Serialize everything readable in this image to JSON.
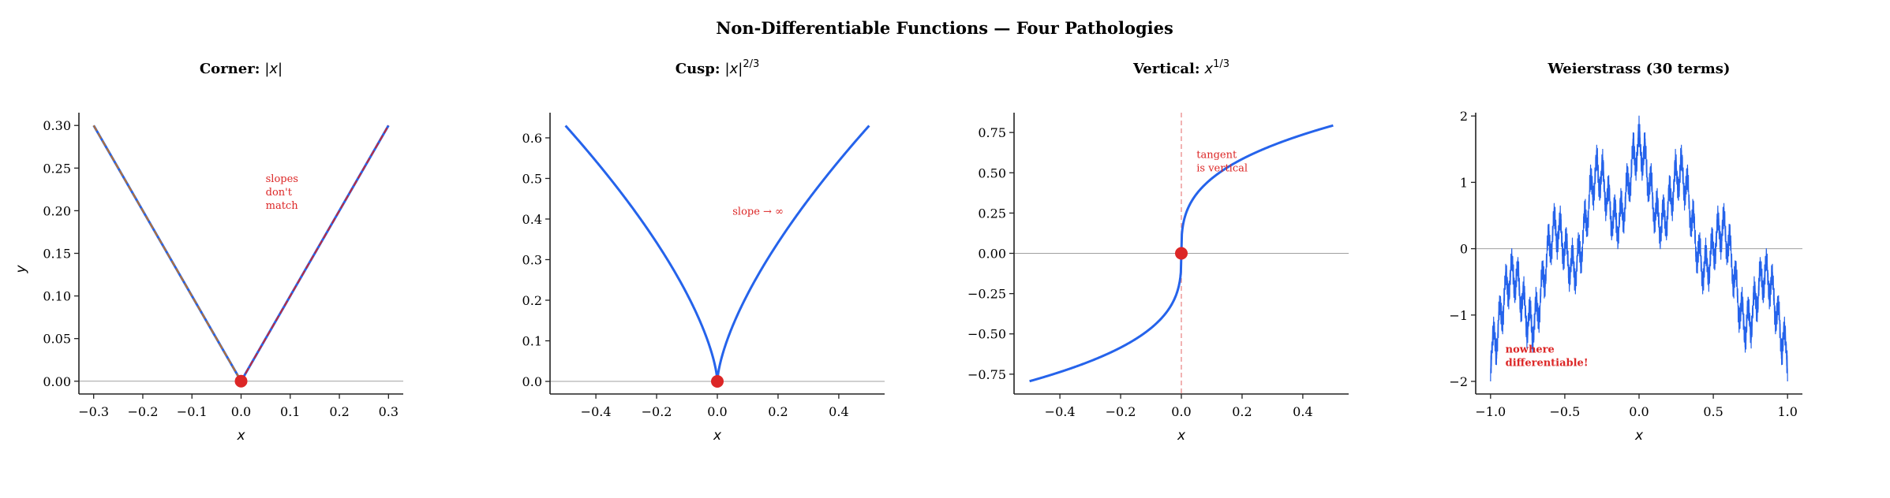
{
  "figure_title": "Non-Differentiable Functions — Four Pathologies",
  "colors": {
    "curve": "#2563eb",
    "point": "#dc2626",
    "annotation": "#dc2626",
    "left_slope": "#b8702e",
    "right_slope": "#c22a3a",
    "zero_line": "#a0a0a0",
    "axis": "#222222"
  },
  "chart_data": [
    {
      "type": "line",
      "title": "Corner:",
      "title_math": "|x|",
      "title_sup": "",
      "function": "|x|",
      "x_range": [
        -0.3,
        0.3
      ],
      "xlim": [
        -0.33,
        0.33
      ],
      "ylim": [
        -0.015,
        0.315
      ],
      "xticks": [
        -0.3,
        -0.2,
        -0.1,
        0.0,
        0.1,
        0.2,
        0.3
      ],
      "xtick_labels": [
        "−0.3",
        "−0.2",
        "−0.1",
        "0.0",
        "0.1",
        "0.2",
        "0.3"
      ],
      "yticks": [
        0.0,
        0.05,
        0.1,
        0.15,
        0.2,
        0.25,
        0.3
      ],
      "ytick_labels": [
        "0.00",
        "0.05",
        "0.10",
        "0.15",
        "0.20",
        "0.25",
        "0.30"
      ],
      "xlabel": "x",
      "ylabel": "y",
      "marked_point": [
        0,
        0
      ],
      "slope_lines": [
        {
          "x": [
            -0.3,
            0
          ],
          "y": [
            0.3,
            0
          ],
          "style": "dashed",
          "color_key": "left_slope"
        },
        {
          "x": [
            0,
            0.3
          ],
          "y": [
            0,
            0.3
          ],
          "style": "dashed",
          "color_key": "right_slope"
        }
      ],
      "annotation": {
        "lines": [
          "slopes",
          "don't",
          "match"
        ],
        "x": 0.05,
        "y": 0.243,
        "bold": false
      }
    },
    {
      "type": "line",
      "title": "Cusp:",
      "title_math": "|x|",
      "title_sup": "2/3",
      "function": "|x|^(2/3)",
      "x_range": [
        -0.5,
        0.5
      ],
      "xlim": [
        -0.551,
        0.551
      ],
      "ylim": [
        -0.031,
        0.662
      ],
      "xticks": [
        -0.4,
        -0.2,
        0.0,
        0.2,
        0.4
      ],
      "xtick_labels": [
        "−0.4",
        "−0.2",
        "0.0",
        "0.2",
        "0.4"
      ],
      "yticks": [
        0.0,
        0.1,
        0.2,
        0.3,
        0.4,
        0.5,
        0.6
      ],
      "ytick_labels": [
        "0.0",
        "0.1",
        "0.2",
        "0.3",
        "0.4",
        "0.5",
        "0.6"
      ],
      "xlabel": "x",
      "ylabel": "",
      "marked_point": [
        0,
        0
      ],
      "annotation": {
        "lines": [
          "slope → ∞"
        ],
        "x": 0.05,
        "y": 0.43,
        "bold": false
      }
    },
    {
      "type": "line",
      "title": "Vertical:",
      "title_math": "x",
      "title_sup": "1/3",
      "function": "sign(x)·|x|^(1/3)",
      "x_range": [
        -0.5,
        0.5
      ],
      "xlim": [
        -0.551,
        0.551
      ],
      "ylim": [
        -0.873,
        0.873
      ],
      "xticks": [
        -0.4,
        -0.2,
        0.0,
        0.2,
        0.4
      ],
      "xtick_labels": [
        "−0.4",
        "−0.2",
        "0.0",
        "0.2",
        "0.4"
      ],
      "yticks": [
        -0.75,
        -0.5,
        -0.25,
        0.0,
        0.25,
        0.5,
        0.75
      ],
      "ytick_labels": [
        "−0.75",
        "−0.50",
        "−0.25",
        "0.00",
        "0.25",
        "0.50",
        "0.75"
      ],
      "xlabel": "x",
      "ylabel": "",
      "marked_point": [
        0,
        0
      ],
      "vertical_tangent_x": 0,
      "annotation": {
        "lines": [
          "tangent",
          "is vertical"
        ],
        "x": 0.05,
        "y": 0.64,
        "bold": false
      }
    },
    {
      "type": "line",
      "title": "Weierstrass (30 terms)",
      "title_math": "",
      "title_sup": "",
      "function": "Σ a^n cos(b^n π x)",
      "terms": 30,
      "a": 0.5,
      "b": 7,
      "x_range": [
        -1.0,
        1.0
      ],
      "xlim": [
        -1.1,
        1.1
      ],
      "ylim": [
        -2.19,
        2.05
      ],
      "xticks": [
        -1.0,
        -0.5,
        0.0,
        0.5,
        1.0
      ],
      "xtick_labels": [
        "−1.0",
        "−0.5",
        "0.0",
        "0.5",
        "1.0"
      ],
      "yticks": [
        -2,
        -1,
        0,
        1,
        2
      ],
      "ytick_labels": [
        "−2",
        "−1",
        "0",
        "1",
        "2"
      ],
      "xlabel": "x",
      "ylabel": "",
      "annotation": {
        "lines": [
          "nowhere",
          "differentiable!"
        ],
        "x": -0.9,
        "y": -1.45,
        "bold": true
      }
    }
  ]
}
